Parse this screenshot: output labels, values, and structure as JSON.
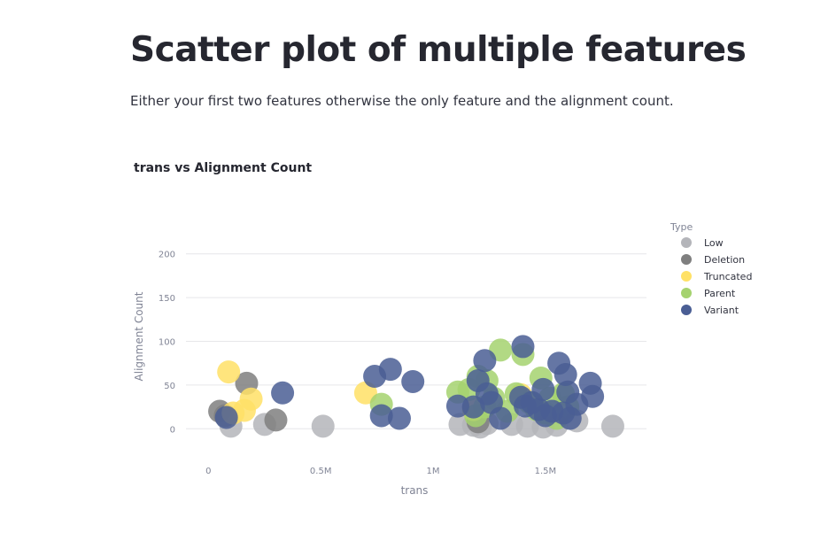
{
  "page": {
    "title": "Scatter plot of multiple features",
    "description": "Either your first two features otherwise the only feature and the alignment count."
  },
  "chart_data": {
    "type": "scatter",
    "title": "trans vs Alignment Count",
    "xlabel": "trans",
    "ylabel": "Alignment Count",
    "xlim": [
      -100000,
      1950000
    ],
    "ylim": [
      -25,
      225
    ],
    "x_ticks": [
      0,
      500000,
      1000000,
      1500000
    ],
    "x_tick_labels": [
      "0",
      "0.5M",
      "1M",
      "1.5M"
    ],
    "y_ticks": [
      0,
      50,
      100,
      150,
      200
    ],
    "y_tick_labels": [
      "0",
      "50",
      "100",
      "150",
      "200"
    ],
    "grid": true,
    "legend_title": "Type",
    "legend_position": "right",
    "series": [
      {
        "name": "Low",
        "color": "#b4b5ba",
        "points": [
          [
            100000,
            3
          ],
          [
            250000,
            5
          ],
          [
            510000,
            3
          ],
          [
            1120000,
            5
          ],
          [
            1180000,
            4
          ],
          [
            1210000,
            2
          ],
          [
            1240000,
            6
          ],
          [
            1350000,
            5
          ],
          [
            1420000,
            3
          ],
          [
            1490000,
            2
          ],
          [
            1550000,
            4
          ],
          [
            1640000,
            9
          ],
          [
            1800000,
            3
          ]
        ]
      },
      {
        "name": "Deletion",
        "color": "#7f7f7f",
        "points": [
          [
            50000,
            20
          ],
          [
            75000,
            15
          ],
          [
            170000,
            52
          ],
          [
            300000,
            10
          ],
          [
            1200000,
            8
          ]
        ]
      },
      {
        "name": "Truncated",
        "color": "#ffe166",
        "points": [
          [
            90000,
            65
          ],
          [
            110000,
            18
          ],
          [
            160000,
            21
          ],
          [
            190000,
            34
          ],
          [
            700000,
            41
          ],
          [
            1180000,
            22
          ],
          [
            1390000,
            39
          ]
        ]
      },
      {
        "name": "Parent",
        "color": "#a5d26f",
        "points": [
          [
            770000,
            28
          ],
          [
            1110000,
            42
          ],
          [
            1160000,
            45
          ],
          [
            1190000,
            15
          ],
          [
            1200000,
            60
          ],
          [
            1230000,
            25
          ],
          [
            1240000,
            55
          ],
          [
            1270000,
            35
          ],
          [
            1300000,
            90
          ],
          [
            1330000,
            20
          ],
          [
            1370000,
            40
          ],
          [
            1400000,
            85
          ],
          [
            1430000,
            30
          ],
          [
            1460000,
            22
          ],
          [
            1480000,
            58
          ],
          [
            1500000,
            18
          ],
          [
            1520000,
            35
          ],
          [
            1550000,
            12
          ],
          [
            1580000,
            40
          ],
          [
            1600000,
            25
          ]
        ]
      },
      {
        "name": "Variant",
        "color": "#4a5e94",
        "points": [
          [
            80000,
            13
          ],
          [
            330000,
            41
          ],
          [
            740000,
            60
          ],
          [
            770000,
            15
          ],
          [
            810000,
            68
          ],
          [
            850000,
            12
          ],
          [
            910000,
            54
          ],
          [
            1110000,
            26
          ],
          [
            1180000,
            25
          ],
          [
            1200000,
            55
          ],
          [
            1230000,
            78
          ],
          [
            1240000,
            40
          ],
          [
            1260000,
            30
          ],
          [
            1300000,
            12
          ],
          [
            1390000,
            36
          ],
          [
            1400000,
            94
          ],
          [
            1410000,
            26
          ],
          [
            1440000,
            30
          ],
          [
            1470000,
            22
          ],
          [
            1490000,
            45
          ],
          [
            1500000,
            15
          ],
          [
            1530000,
            20
          ],
          [
            1560000,
            75
          ],
          [
            1580000,
            18
          ],
          [
            1590000,
            62
          ],
          [
            1600000,
            42
          ],
          [
            1610000,
            12
          ],
          [
            1640000,
            28
          ],
          [
            1700000,
            52
          ],
          [
            1710000,
            37
          ]
        ]
      }
    ]
  }
}
